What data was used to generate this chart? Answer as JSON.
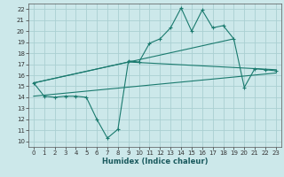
{
  "background_color": "#cce8ea",
  "grid_color": "#aacfd2",
  "line_color": "#1a7a6e",
  "xlabel": "Humidex (Indice chaleur)",
  "xlim": [
    -0.5,
    23.5
  ],
  "ylim": [
    9.5,
    22.5
  ],
  "yticks": [
    10,
    11,
    12,
    13,
    14,
    15,
    16,
    17,
    18,
    19,
    20,
    21,
    22
  ],
  "xticks": [
    0,
    1,
    2,
    3,
    4,
    5,
    6,
    7,
    8,
    9,
    10,
    11,
    12,
    13,
    14,
    15,
    16,
    17,
    18,
    19,
    20,
    21,
    22,
    23
  ],
  "main_x": [
    0,
    1,
    2,
    3,
    4,
    5,
    6,
    7,
    8,
    9,
    10,
    11,
    12,
    13,
    14,
    15,
    16,
    17,
    18,
    19,
    20,
    21,
    22,
    23
  ],
  "main_y": [
    15.3,
    14.1,
    14.0,
    14.1,
    14.1,
    14.0,
    12.0,
    10.3,
    11.1,
    17.3,
    17.2,
    18.9,
    19.3,
    20.3,
    22.1,
    20.0,
    21.9,
    20.3,
    20.5,
    19.3,
    14.9,
    16.6,
    16.5,
    16.4
  ],
  "trend1_x": [
    0,
    19
  ],
  "trend1_y": [
    15.3,
    19.3
  ],
  "trend2_x": [
    0,
    9,
    23
  ],
  "trend2_y": [
    15.3,
    17.2,
    16.5
  ],
  "trend3_x": [
    0,
    23
  ],
  "trend3_y": [
    14.1,
    16.2
  ]
}
